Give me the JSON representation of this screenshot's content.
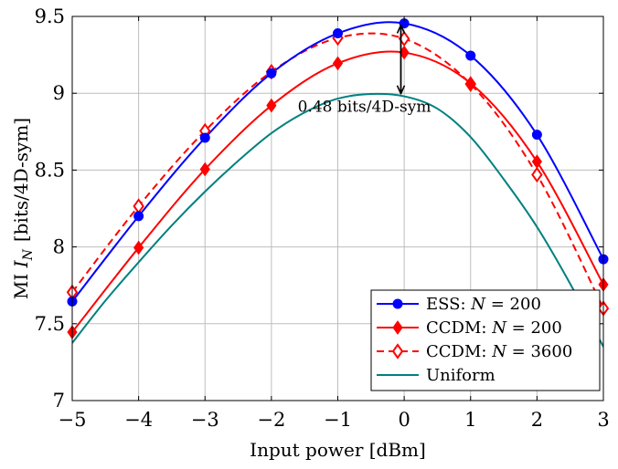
{
  "chart_data": {
    "type": "line",
    "title": "",
    "xlabel": "Input power [dBm]",
    "ylabel": "MI I_N [bits/4D-sym]",
    "ylabel_parts": {
      "prefix": "MI ",
      "var": "I",
      "sub": "N",
      "suffix": "[bits/4D-sym]"
    },
    "xlim": [
      -5,
      3
    ],
    "ylim": [
      7,
      9.5
    ],
    "x_ticks": [
      -5,
      -4,
      -3,
      -2,
      -1,
      0,
      1,
      2,
      3
    ],
    "x_tick_labels": [
      "−5",
      "−4",
      "−3",
      "−2",
      "−1",
      "0",
      "1",
      "2",
      "3"
    ],
    "y_ticks": [
      7,
      7.5,
      8,
      8.5,
      9,
      9.5
    ],
    "y_tick_labels": [
      "7",
      "7.5",
      "8",
      "8.5",
      "9",
      "9.5"
    ],
    "grid": true,
    "legend_position": "bottom-right",
    "series": [
      {
        "name": "ESS: N = 200",
        "label_parts": {
          "prefix": "ESS: ",
          "var": "N",
          "eq": " = 200"
        },
        "color": "#0000ff",
        "dash": "solid",
        "marker": "circle-filled",
        "x": [
          -5,
          -4,
          -3,
          -2,
          -1,
          0,
          1,
          2,
          3
        ],
        "y": [
          7.645,
          8.2,
          8.71,
          9.13,
          9.39,
          9.455,
          9.245,
          8.73,
          7.92
        ]
      },
      {
        "name": "CCDM: N = 200",
        "label_parts": {
          "prefix": "CCDM: ",
          "var": "N",
          "eq": " = 200"
        },
        "color": "#ff0000",
        "dash": "solid",
        "marker": "diamond-filled",
        "x": [
          -5,
          -4,
          -3,
          -2,
          -1,
          0,
          1,
          2,
          3
        ],
        "y": [
          7.445,
          7.995,
          8.505,
          8.92,
          9.195,
          9.265,
          9.065,
          8.555,
          7.755
        ]
      },
      {
        "name": "CCDM: N = 3600",
        "label_parts": {
          "prefix": "CCDM: ",
          "var": "N",
          "eq": " = 3600"
        },
        "color": "#ff0000",
        "dash": "dashed",
        "marker": "diamond-open",
        "x": [
          -5,
          -4,
          -3,
          -2,
          -1,
          0,
          1,
          2,
          3
        ],
        "y": [
          7.705,
          8.265,
          8.755,
          9.14,
          9.36,
          9.355,
          9.06,
          8.47,
          7.6
        ]
      },
      {
        "name": "Uniform",
        "color": "#008080",
        "dash": "solid",
        "marker": "none",
        "x": [
          -5,
          -4.5,
          -4,
          -3.5,
          -3,
          -2.5,
          -2,
          -1.5,
          -1,
          -0.5,
          0,
          0.5,
          1,
          1.5,
          2,
          2.5,
          3
        ],
        "y": [
          7.375,
          7.65,
          7.9,
          8.14,
          8.36,
          8.56,
          8.74,
          8.875,
          8.965,
          8.995,
          8.98,
          8.9,
          8.715,
          8.44,
          8.13,
          7.76,
          7.35
        ]
      }
    ],
    "annotations": [
      {
        "type": "double-arrow",
        "x": -0.05,
        "y_from": 8.985,
        "y_to": 9.455
      },
      {
        "type": "text",
        "text": "0.48 bits/4D-sym",
        "x": -0.6,
        "y": 8.88
      }
    ]
  }
}
